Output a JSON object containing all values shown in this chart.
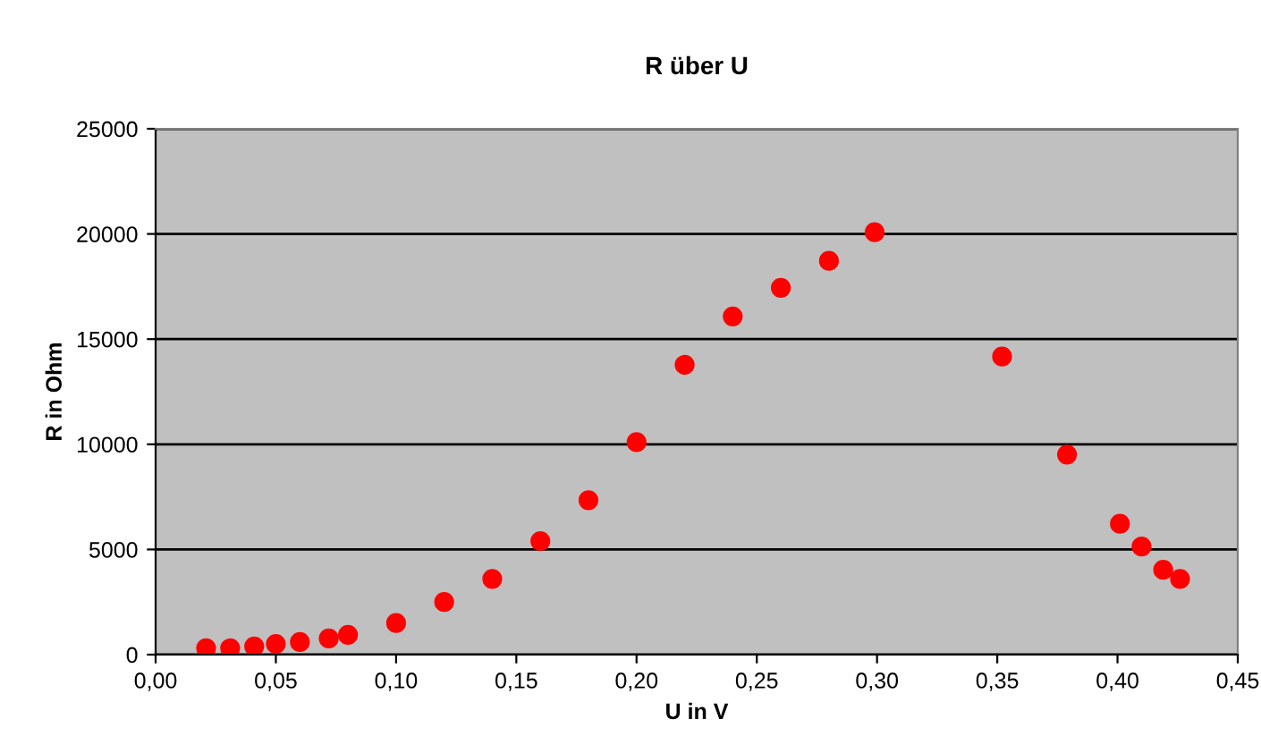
{
  "chart_data": {
    "type": "scatter",
    "title": "R über U",
    "xlabel": "U in V",
    "ylabel": "R in Ohm",
    "x": [
      0.021,
      0.031,
      0.041,
      0.05,
      0.06,
      0.072,
      0.08,
      0.1,
      0.12,
      0.14,
      0.16,
      0.18,
      0.2,
      0.22,
      0.24,
      0.26,
      0.28,
      0.299,
      0.352,
      0.379,
      0.401,
      0.41,
      0.419,
      0.426
    ],
    "series": [
      {
        "color": "#ff0000",
        "values": [
          300,
          300,
          390,
          510,
          600,
          770,
          940,
          1500,
          2500,
          3600,
          5400,
          7340,
          10100,
          13780,
          16080,
          17440,
          18720,
          20080,
          14170,
          9510,
          6220,
          5140,
          4030,
          3600
        ]
      }
    ],
    "xlim": [
      0,
      0.45
    ],
    "xticks": [
      {
        "value": 0,
        "label": "0,00"
      },
      {
        "value": 0.05,
        "label": "0,05"
      },
      {
        "value": 0.1,
        "label": "0,10"
      },
      {
        "value": 0.15,
        "label": "0,15"
      },
      {
        "value": 0.2,
        "label": "0,20"
      },
      {
        "value": 0.25,
        "label": "0,25"
      },
      {
        "value": 0.3,
        "label": "0,30"
      },
      {
        "value": 0.35,
        "label": "0,35"
      },
      {
        "value": 0.4,
        "label": "0,40"
      },
      {
        "value": 0.45,
        "label": "0,45"
      }
    ],
    "ylim": [
      0,
      25000
    ],
    "yticks": [
      0,
      5000,
      10000,
      15000,
      20000,
      25000
    ],
    "grid": "y",
    "marker": "circle",
    "legend": false
  }
}
